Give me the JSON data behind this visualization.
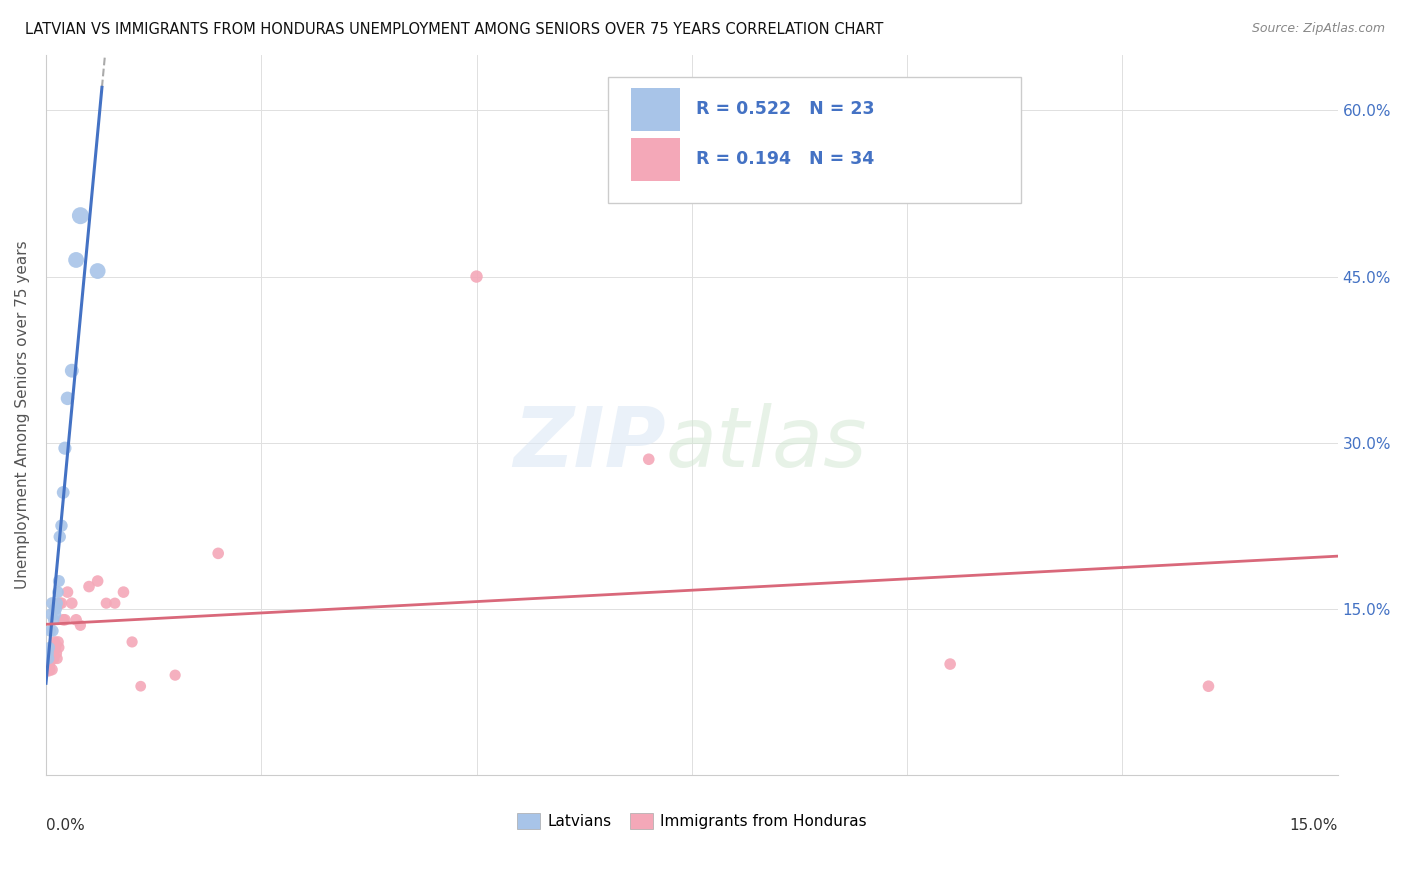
{
  "title": "LATVIAN VS IMMIGRANTS FROM HONDURAS UNEMPLOYMENT AMONG SENIORS OVER 75 YEARS CORRELATION CHART",
  "source": "Source: ZipAtlas.com",
  "ylabel": "Unemployment Among Seniors over 75 years",
  "legend_latvians": "Latvians",
  "legend_hondurans": "Immigrants from Honduras",
  "R_latvian": 0.522,
  "N_latvian": 23,
  "R_honduran": 0.194,
  "N_honduran": 34,
  "color_latvian": "#a8c4e8",
  "color_honduran": "#f4a8b8",
  "color_line_latvian": "#4472c4",
  "color_line_honduran": "#d9687a",
  "color_text_blue": "#4472c4",
  "latvian_x": [
    0.0002,
    0.0003,
    0.0004,
    0.0005,
    0.0006,
    0.0007,
    0.0008,
    0.0009,
    0.001,
    0.0011,
    0.0012,
    0.0013,
    0.0014,
    0.0015,
    0.0016,
    0.0018,
    0.002,
    0.0022,
    0.0025,
    0.003,
    0.0035,
    0.004,
    0.006
  ],
  "latvian_y": [
    0.11,
    0.105,
    0.115,
    0.13,
    0.145,
    0.155,
    0.13,
    0.14,
    0.15,
    0.145,
    0.15,
    0.155,
    0.165,
    0.175,
    0.215,
    0.225,
    0.255,
    0.295,
    0.34,
    0.365,
    0.465,
    0.505,
    0.455
  ],
  "honduran_x": [
    0.0002,
    0.0003,
    0.0005,
    0.0006,
    0.0007,
    0.0008,
    0.0009,
    0.001,
    0.0011,
    0.0012,
    0.0013,
    0.0014,
    0.0015,
    0.0016,
    0.0018,
    0.002,
    0.0022,
    0.0025,
    0.003,
    0.0035,
    0.004,
    0.005,
    0.006,
    0.007,
    0.008,
    0.009,
    0.01,
    0.011,
    0.015,
    0.02,
    0.05,
    0.07,
    0.105,
    0.135
  ],
  "honduran_y": [
    0.1,
    0.095,
    0.105,
    0.11,
    0.095,
    0.115,
    0.105,
    0.12,
    0.115,
    0.11,
    0.105,
    0.12,
    0.115,
    0.155,
    0.155,
    0.14,
    0.14,
    0.165,
    0.155,
    0.14,
    0.135,
    0.17,
    0.175,
    0.155,
    0.155,
    0.165,
    0.12,
    0.08,
    0.09,
    0.2,
    0.45,
    0.285,
    0.1,
    0.08
  ],
  "xlim": [
    0.0,
    0.15
  ],
  "ylim": [
    0.0,
    0.65
  ],
  "latvian_dot_sizes": [
    80,
    70,
    65,
    70,
    75,
    75,
    70,
    70,
    70,
    70,
    70,
    70,
    70,
    75,
    80,
    80,
    85,
    90,
    95,
    100,
    130,
    150,
    130
  ],
  "honduran_dot_sizes": [
    120,
    100,
    80,
    75,
    70,
    70,
    70,
    70,
    70,
    70,
    65,
    70,
    65,
    70,
    70,
    70,
    70,
    70,
    70,
    70,
    65,
    70,
    70,
    65,
    65,
    70,
    65,
    60,
    65,
    70,
    80,
    70,
    70,
    70
  ]
}
